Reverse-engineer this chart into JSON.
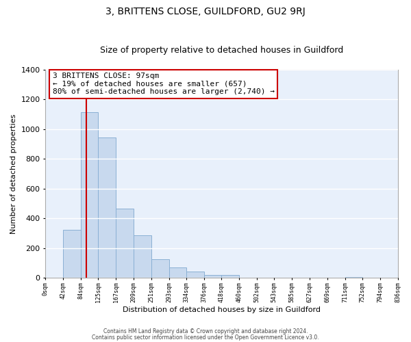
{
  "title": "3, BRITTENS CLOSE, GUILDFORD, GU2 9RJ",
  "subtitle": "Size of property relative to detached houses in Guildford",
  "xlabel": "Distribution of detached houses by size in Guildford",
  "ylabel": "Number of detached properties",
  "bar_values": [
    0,
    325,
    1115,
    945,
    465,
    285,
    125,
    70,
    45,
    20,
    20,
    0,
    0,
    0,
    0,
    0,
    0,
    5,
    0,
    0
  ],
  "bin_edges": [
    0,
    42,
    84,
    125,
    167,
    209,
    251,
    293,
    334,
    376,
    418,
    460,
    502,
    543,
    585,
    627,
    669,
    711,
    752,
    794,
    836
  ],
  "tick_labels": [
    "0sqm",
    "42sqm",
    "84sqm",
    "125sqm",
    "167sqm",
    "209sqm",
    "251sqm",
    "293sqm",
    "334sqm",
    "376sqm",
    "418sqm",
    "460sqm",
    "502sqm",
    "543sqm",
    "585sqm",
    "627sqm",
    "669sqm",
    "711sqm",
    "752sqm",
    "794sqm",
    "836sqm"
  ],
  "bar_color": "#c8d9ee",
  "bar_edge_color": "#8ab0d4",
  "vline_x": 97,
  "vline_color": "#cc0000",
  "annotation_line1": "3 BRITTENS CLOSE: 97sqm",
  "annotation_line2": "← 19% of detached houses are smaller (657)",
  "annotation_line3": "80% of semi-detached houses are larger (2,740) →",
  "annotation_box_color": "#ffffff",
  "annotation_box_edge": "#cc0000",
  "ylim": [
    0,
    1400
  ],
  "yticks": [
    0,
    200,
    400,
    600,
    800,
    1000,
    1200,
    1400
  ],
  "bg_color": "#ffffff",
  "plot_bg_color": "#e8f0fb",
  "grid_color": "#ffffff",
  "footer_line1": "Contains HM Land Registry data © Crown copyright and database right 2024.",
  "footer_line2": "Contains public sector information licensed under the Open Government Licence v3.0.",
  "title_fontsize": 10,
  "subtitle_fontsize": 9,
  "annotation_fontsize": 8,
  "xlabel_fontsize": 8,
  "ylabel_fontsize": 8
}
